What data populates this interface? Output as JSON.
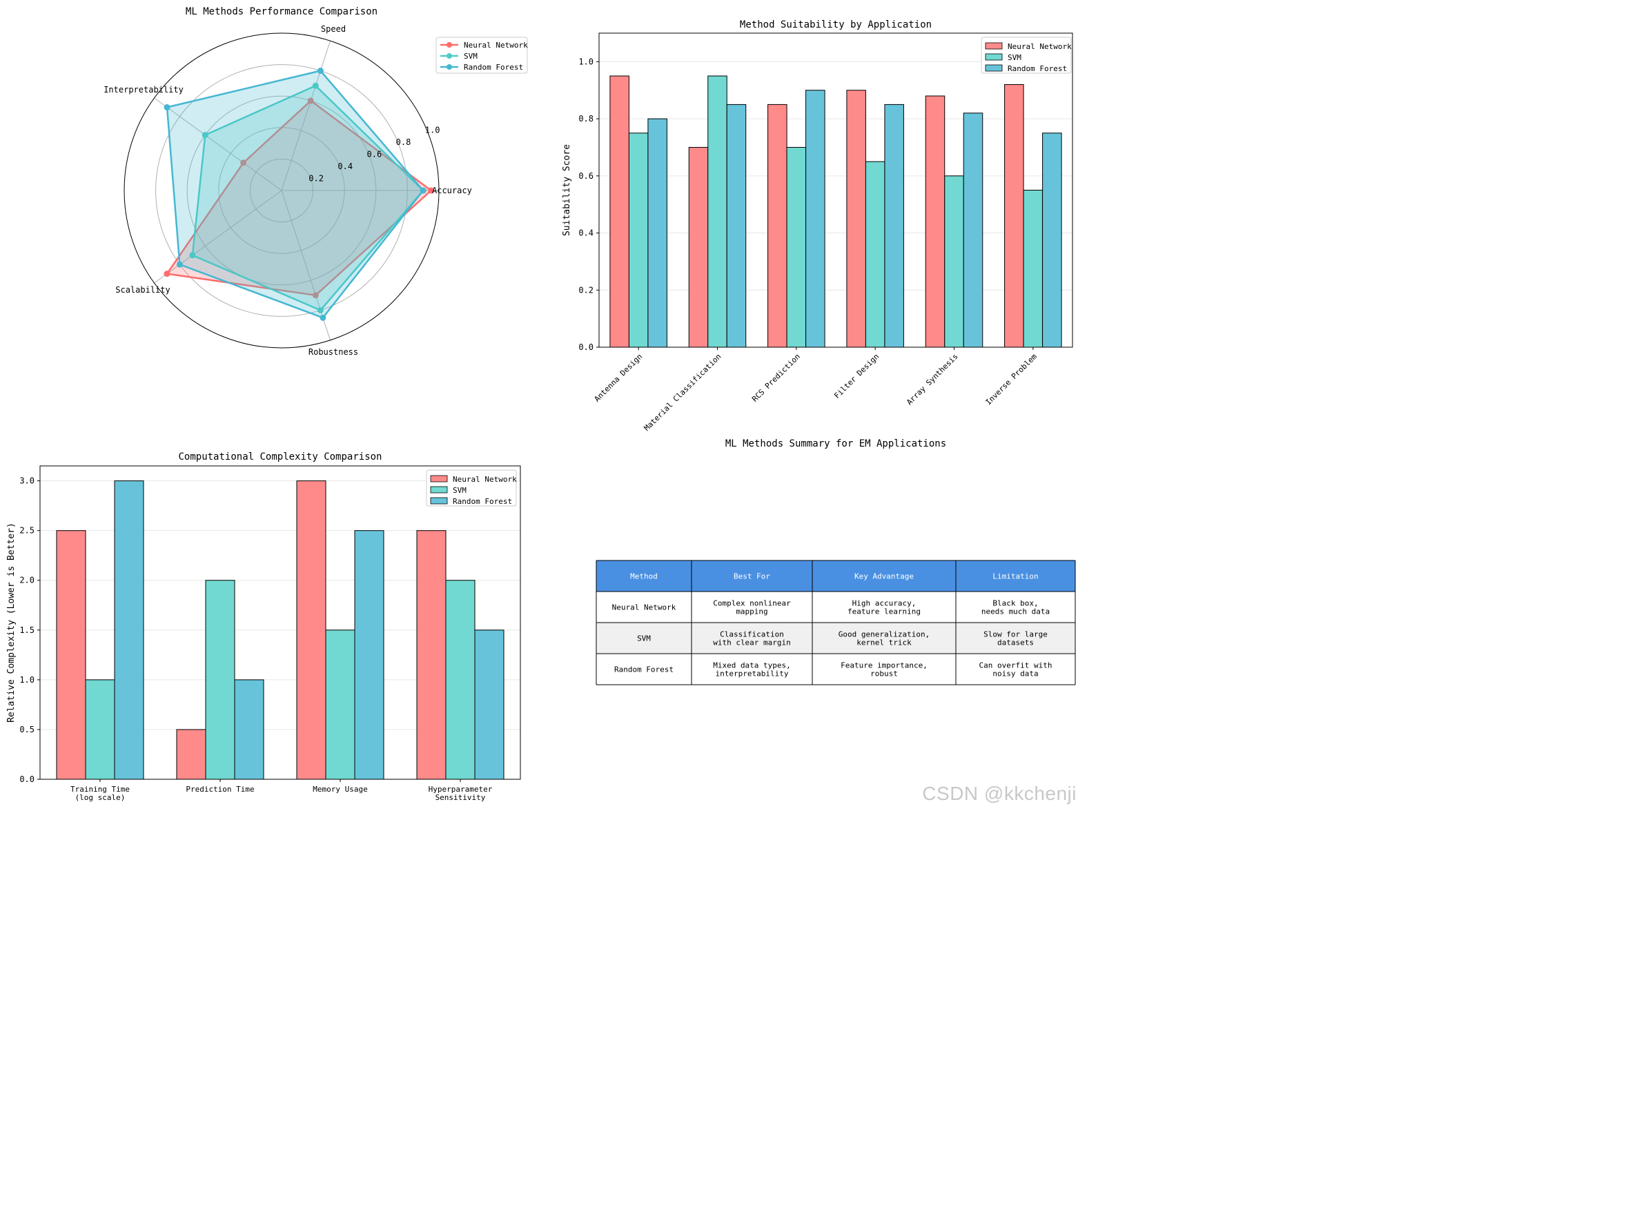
{
  "figure": {
    "watermark": "CSDN @kkchenji"
  },
  "chart_data": [
    {
      "type": "radar",
      "title": "ML Methods Performance Comparison",
      "categories": [
        "Speed",
        "Interpretability",
        "Scalability",
        "Robustness",
        "Accuracy"
      ],
      "rlim": [
        0,
        1.0
      ],
      "r_ticks": [
        "0.2",
        "0.4",
        "0.6",
        "0.8",
        "1.0"
      ],
      "legend_position": "top-right",
      "series": [
        {
          "name": "Neural Network",
          "values": [
            0.6,
            0.3,
            0.9,
            0.7,
            0.95
          ],
          "color": "#ff6b6b"
        },
        {
          "name": "SVM",
          "values": [
            0.7,
            0.6,
            0.7,
            0.8,
            0.9
          ],
          "color": "#4ecdc4"
        },
        {
          "name": "Random Forest",
          "values": [
            0.8,
            0.9,
            0.8,
            0.85,
            0.9
          ],
          "color": "#45b7d1"
        }
      ]
    },
    {
      "type": "bar",
      "title": "Method Suitability by Application",
      "xlabel": "",
      "ylabel": "Suitability Score",
      "ylim": [
        0,
        1.1
      ],
      "y_ticks": [
        "0.0",
        "0.2",
        "0.4",
        "0.6",
        "0.8",
        "1.0"
      ],
      "grid": "y",
      "legend_position": "top-right",
      "categories": [
        "Antenna Design",
        "Material Classification",
        "RCS Prediction",
        "Filter Design",
        "Array Synthesis",
        "Inverse Problem"
      ],
      "series": [
        {
          "name": "Neural Network",
          "values": [
            0.95,
            0.7,
            0.85,
            0.9,
            0.88,
            0.92
          ],
          "color": "#ff8a8a"
        },
        {
          "name": "SVM",
          "values": [
            0.75,
            0.95,
            0.7,
            0.65,
            0.6,
            0.55
          ],
          "color": "#71d9d1"
        },
        {
          "name": "Random Forest",
          "values": [
            0.8,
            0.85,
            0.9,
            0.85,
            0.82,
            0.75
          ],
          "color": "#67c3da"
        }
      ]
    },
    {
      "type": "bar",
      "title": "Computational Complexity Comparison",
      "xlabel": "",
      "ylabel": "Relative Complexity (Lower is Better)",
      "ylim": [
        0,
        3.15
      ],
      "y_ticks": [
        "0.0",
        "0.5",
        "1.0",
        "1.5",
        "2.0",
        "2.5",
        "3.0"
      ],
      "grid": "y",
      "legend_position": "top-right",
      "categories": [
        [
          "Training Time",
          "(log scale)"
        ],
        [
          "Prediction Time"
        ],
        [
          "Memory Usage"
        ],
        [
          "Hyperparameter",
          "Sensitivity"
        ]
      ],
      "series": [
        {
          "name": "Neural Network",
          "values": [
            2.5,
            0.5,
            3.0,
            2.5
          ],
          "color": "#ff8a8a"
        },
        {
          "name": "SVM",
          "values": [
            1.0,
            2.0,
            1.5,
            2.0
          ],
          "color": "#71d9d1"
        },
        {
          "name": "Random Forest",
          "values": [
            3.0,
            1.0,
            2.5,
            1.5
          ],
          "color": "#67c3da"
        }
      ]
    },
    {
      "type": "table",
      "title": "ML Methods Summary for EM Applications",
      "header_color": "#4a90e2",
      "columns": [
        "Method",
        "Best For",
        "Key Advantage",
        "Limitation"
      ],
      "rows": [
        [
          [
            "Neural Network"
          ],
          [
            "Complex nonlinear",
            "mapping"
          ],
          [
            "High accuracy,",
            "feature learning"
          ],
          [
            "Black box,",
            "needs much data"
          ]
        ],
        [
          [
            "SVM"
          ],
          [
            "Classification",
            "with clear margin"
          ],
          [
            "Good generalization,",
            "kernel trick"
          ],
          [
            "Slow for large",
            "datasets"
          ]
        ],
        [
          [
            "Random Forest"
          ],
          [
            "Mixed data types,",
            "interpretability"
          ],
          [
            "Feature importance,",
            "robust"
          ],
          [
            "Can overfit with",
            "noisy data"
          ]
        ]
      ]
    }
  ]
}
